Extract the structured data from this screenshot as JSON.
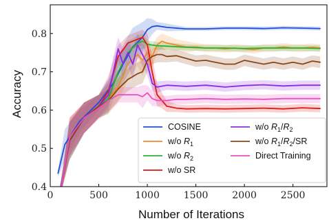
{
  "chart_data": {
    "type": "line",
    "xlabel": "Number of Iterations",
    "ylabel": "Accuracy",
    "xlim": [
      0,
      2850
    ],
    "ylim": [
      0.4,
      0.875
    ],
    "xticks": [
      0,
      500,
      1000,
      1500,
      2000,
      2500
    ],
    "xtick_labels": [
      "0",
      "500",
      "1000",
      "1500",
      "2000",
      "2500"
    ],
    "yticks": [
      0.4,
      0.5,
      0.6,
      0.7,
      0.8
    ],
    "ytick_labels": [
      "0.4",
      "0.5",
      "0.6",
      "0.7",
      "0.8"
    ],
    "grid": false,
    "legend_position": "lower-right",
    "series": [
      {
        "name": "COSINE",
        "label_html": "COSINE",
        "color": "#1f4fd8",
        "x": [
          80,
          150,
          300,
          500,
          650,
          750,
          850,
          950,
          1000,
          1050,
          1100,
          1200,
          1400,
          1600,
          1800,
          2000,
          2200,
          2400,
          2600,
          2780
        ],
        "y": [
          0.435,
          0.51,
          0.57,
          0.62,
          0.67,
          0.72,
          0.765,
          0.79,
          0.81,
          0.818,
          0.82,
          0.816,
          0.812,
          0.812,
          0.814,
          0.814,
          0.813,
          0.815,
          0.814,
          0.813
        ],
        "spread": [
          0.01,
          0.04,
          0.03,
          0.02,
          0.03,
          0.05,
          0.05,
          0.04,
          0.03,
          0.02,
          0.01,
          0.01,
          0.005,
          0.005,
          0.005,
          0.005,
          0.005,
          0.005,
          0.005,
          0.005
        ]
      },
      {
        "name": "w/o R1",
        "label_html": "w/o <tspan font-style=\"italic\">R</tspan><tspan class=\"legend-sub\" dy=\"3\">1</tspan>",
        "color": "#f28a28",
        "x": [
          100,
          200,
          350,
          500,
          600,
          700,
          800,
          900,
          950,
          1000,
          1050,
          1100,
          1150,
          1200,
          1300,
          1400,
          1500,
          1600,
          1700,
          1800,
          1900,
          2000,
          2100,
          2200,
          2300,
          2400,
          2500,
          2600,
          2700,
          2780
        ],
        "y": [
          0.38,
          0.53,
          0.58,
          0.61,
          0.63,
          0.66,
          0.72,
          0.745,
          0.73,
          0.75,
          0.74,
          0.77,
          0.78,
          0.775,
          0.77,
          0.765,
          0.765,
          0.762,
          0.762,
          0.76,
          0.762,
          0.76,
          0.758,
          0.762,
          0.762,
          0.765,
          0.762,
          0.762,
          0.764,
          0.762
        ],
        "spread": [
          0.01,
          0.05,
          0.04,
          0.03,
          0.04,
          0.04,
          0.04,
          0.03,
          0.04,
          0.03,
          0.03,
          0.02,
          0.02,
          0.02,
          0.015,
          0.015,
          0.01,
          0.01,
          0.01,
          0.01,
          0.01,
          0.01,
          0.01,
          0.01,
          0.01,
          0.01,
          0.01,
          0.01,
          0.01,
          0.01
        ]
      },
      {
        "name": "w/o R2",
        "label_html": "w/o <tspan font-style=\"italic\">R</tspan><tspan class=\"legend-sub\" dy=\"3\">2</tspan>",
        "color": "#2cae32",
        "x": [
          100,
          200,
          350,
          500,
          600,
          700,
          800,
          900,
          950,
          1000,
          1050,
          1100,
          1200,
          1400,
          1600,
          1800,
          2000,
          2200,
          2400,
          2600,
          2780
        ],
        "y": [
          0.39,
          0.52,
          0.58,
          0.61,
          0.63,
          0.7,
          0.75,
          0.775,
          0.78,
          0.772,
          0.77,
          0.768,
          0.767,
          0.764,
          0.762,
          0.762,
          0.761,
          0.762,
          0.762,
          0.762,
          0.761
        ],
        "spread": [
          0.01,
          0.05,
          0.04,
          0.03,
          0.04,
          0.04,
          0.03,
          0.02,
          0.02,
          0.01,
          0.01,
          0.01,
          0.01,
          0.008,
          0.008,
          0.008,
          0.008,
          0.008,
          0.008,
          0.008,
          0.008
        ]
      },
      {
        "name": "w/o SR",
        "label_html": "w/o SR",
        "color": "#e01818",
        "x": [
          100,
          200,
          350,
          500,
          600,
          700,
          800,
          900,
          950,
          1000,
          1050,
          1100,
          1150,
          1200,
          1300,
          1400,
          1600,
          1800,
          2000,
          2200,
          2400,
          2600,
          2780
        ],
        "y": [
          0.38,
          0.53,
          0.58,
          0.61,
          0.65,
          0.74,
          0.775,
          0.785,
          0.79,
          0.77,
          0.7,
          0.64,
          0.625,
          0.61,
          0.605,
          0.603,
          0.604,
          0.603,
          0.604,
          0.605,
          0.603,
          0.606,
          0.604
        ],
        "spread": [
          0.01,
          0.05,
          0.04,
          0.03,
          0.04,
          0.03,
          0.02,
          0.02,
          0.02,
          0.03,
          0.04,
          0.03,
          0.02,
          0.015,
          0.01,
          0.01,
          0.01,
          0.01,
          0.01,
          0.01,
          0.01,
          0.01,
          0.01
        ]
      },
      {
        "name": "w/o R1/R2",
        "label_html": "w/o <tspan font-style=\"italic\">R</tspan><tspan class=\"legend-sub\" dy=\"3\">1</tspan><tspan dy=\"-3\">/</tspan><tspan font-style=\"italic\">R</tspan><tspan class=\"legend-sub\" dy=\"3\">2</tspan>",
        "color": "#8a2be2",
        "x": [
          100,
          200,
          350,
          500,
          600,
          650,
          700,
          750,
          800,
          850,
          900,
          950,
          1000,
          1050,
          1100,
          1200,
          1400,
          1600,
          1800,
          2000,
          2200,
          2400,
          2600,
          2780
        ],
        "y": [
          0.39,
          0.52,
          0.58,
          0.61,
          0.64,
          0.7,
          0.76,
          0.72,
          0.75,
          0.72,
          0.77,
          0.745,
          0.72,
          0.67,
          0.66,
          0.665,
          0.662,
          0.665,
          0.66,
          0.664,
          0.666,
          0.663,
          0.665,
          0.665
        ],
        "spread": [
          0.01,
          0.05,
          0.04,
          0.03,
          0.04,
          0.04,
          0.03,
          0.04,
          0.03,
          0.04,
          0.03,
          0.03,
          0.03,
          0.02,
          0.015,
          0.012,
          0.012,
          0.012,
          0.012,
          0.012,
          0.012,
          0.012,
          0.012,
          0.012
        ]
      },
      {
        "name": "w/o R1/R2/SR",
        "label_html": "w/o <tspan font-style=\"italic\">R</tspan><tspan class=\"legend-sub\" dy=\"3\">1</tspan><tspan dy=\"-3\">/</tspan><tspan font-style=\"italic\">R</tspan><tspan class=\"legend-sub\" dy=\"3\">2</tspan><tspan dy=\"-3\">/SR</tspan>",
        "color": "#8b4513",
        "x": [
          100,
          200,
          350,
          500,
          600,
          700,
          800,
          900,
          950,
          1000,
          1050,
          1100,
          1150,
          1200,
          1300,
          1400,
          1500,
          1600,
          1700,
          1800,
          1900,
          2000,
          2100,
          2200,
          2300,
          2400,
          2500,
          2600,
          2700,
          2780
        ],
        "y": [
          0.38,
          0.52,
          0.58,
          0.61,
          0.625,
          0.655,
          0.68,
          0.695,
          0.7,
          0.73,
          0.74,
          0.745,
          0.745,
          0.74,
          0.742,
          0.735,
          0.728,
          0.73,
          0.725,
          0.72,
          0.72,
          0.73,
          0.725,
          0.72,
          0.725,
          0.72,
          0.725,
          0.72,
          0.728,
          0.725
        ],
        "spread": [
          0.01,
          0.05,
          0.04,
          0.03,
          0.03,
          0.03,
          0.03,
          0.03,
          0.03,
          0.03,
          0.02,
          0.02,
          0.02,
          0.015,
          0.015,
          0.015,
          0.015,
          0.015,
          0.015,
          0.015,
          0.015,
          0.015,
          0.015,
          0.015,
          0.015,
          0.015,
          0.015,
          0.015,
          0.015,
          0.015
        ]
      },
      {
        "name": "Direct Training",
        "label_html": "Direct Training",
        "color": "#e64fc0",
        "x": [
          100,
          200,
          350,
          500,
          600,
          700,
          800,
          900,
          950,
          1000,
          1050,
          1100,
          1200,
          1300,
          1400,
          1600,
          1800,
          2000,
          2200,
          2400,
          2600,
          2780
        ],
        "y": [
          0.38,
          0.53,
          0.58,
          0.605,
          0.625,
          0.64,
          0.64,
          0.64,
          0.635,
          0.645,
          0.63,
          0.625,
          0.625,
          0.628,
          0.628,
          0.63,
          0.628,
          0.629,
          0.628,
          0.63,
          0.63,
          0.63
        ],
        "spread": [
          0.01,
          0.05,
          0.04,
          0.03,
          0.03,
          0.02,
          0.02,
          0.02,
          0.03,
          0.02,
          0.02,
          0.015,
          0.012,
          0.012,
          0.012,
          0.012,
          0.012,
          0.012,
          0.012,
          0.012,
          0.012,
          0.012
        ]
      }
    ]
  }
}
